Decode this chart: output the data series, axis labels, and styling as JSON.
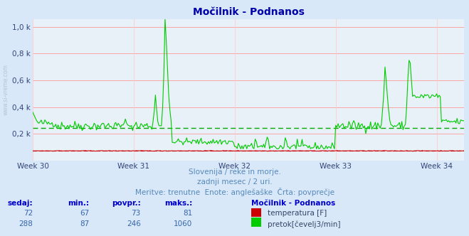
{
  "title": "Močilnik - Podnanos",
  "bg_color": "#d8e8f8",
  "plot_bg_color": "#e8f0f8",
  "grid_color_h": "#ff9999",
  "grid_color_v": "#ffcccc",
  "temp_color": "#cc0000",
  "flow_color": "#00cc00",
  "flow_avg_color": "#00aa00",
  "temp_avg_color": "#cc0000",
  "temp_avg_value": 73,
  "flow_avg_value": 246,
  "y_max": 1060,
  "num_points": 360,
  "week_ticks": [
    0,
    84,
    168,
    252,
    336
  ],
  "week_labels": [
    "Week 30",
    "Week 31",
    "Week 32",
    "Week 33",
    "Week 34"
  ],
  "ytick_values": [
    200,
    400,
    600,
    800,
    1000
  ],
  "ytick_labels": [
    "0,2 k",
    "0,4 k",
    "0,6 k",
    "0,8 k",
    "1,0 k"
  ],
  "subtitle1": "Slovenija / reke in morje.",
  "subtitle2": "zadnji mesec / 2 uri.",
  "subtitle3": "Meritve: trenutne  Enote: anglešaške  Črta: povprečje",
  "table_header_sedaj": "sedaj:",
  "table_header_min": "min.:",
  "table_header_povpr": "povpr.:",
  "table_header_maks": "maks.:",
  "table_header_station": "Močilnik - Podnanos",
  "table_row1": [
    "72",
    "67",
    "73",
    "81"
  ],
  "table_row1_label": "temperatura [F]",
  "table_row2": [
    "288",
    "87",
    "246",
    "1060"
  ],
  "table_row2_label": "pretok[čevelj3/min]",
  "watermark": "www.si-vreme.com"
}
